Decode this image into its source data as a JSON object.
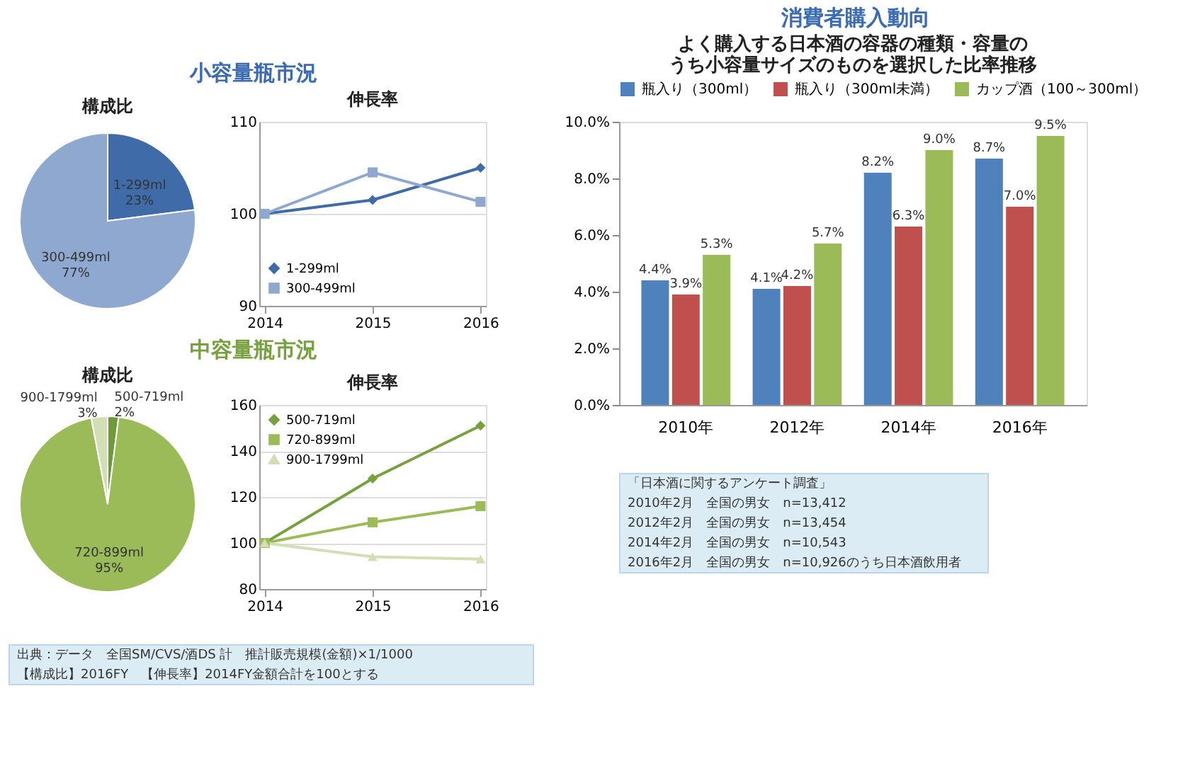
{
  "chart_data": [
    {
      "type": "pie",
      "title": "構成比",
      "annotations": [
        "小容量瓶市況"
      ],
      "categories": [
        "1-299ml",
        "300-499ml"
      ],
      "values": [
        23,
        77
      ],
      "value_labels": [
        "23%",
        "77%"
      ],
      "colors": [
        "#3f6ca8",
        "#8fa8d0"
      ]
    },
    {
      "type": "line",
      "title": "伸長率",
      "categories": [
        "2014",
        "2015",
        "2016"
      ],
      "ylim": [
        90,
        110
      ],
      "yticks": [
        90,
        100,
        110
      ],
      "grid": "y",
      "legend": "bottom left",
      "line_style": "solid",
      "series": [
        {
          "name": "1-299ml",
          "color": "#3f6ca8",
          "marker": "diamond",
          "values": [
            100,
            101.5,
            105
          ]
        },
        {
          "name": "300-499ml",
          "color": "#8fa8d0",
          "marker": "square",
          "values": [
            100,
            104.5,
            101.3
          ]
        }
      ]
    },
    {
      "type": "pie",
      "title": "構成比",
      "annotations": [
        "中容量瓶市況"
      ],
      "categories": [
        "500-719ml",
        "720-899ml",
        "900-1799ml"
      ],
      "values": [
        2,
        95,
        3
      ],
      "value_labels": [
        "2%",
        "95%",
        "3%"
      ],
      "colors": [
        "#6f9a3a",
        "#9bbb59",
        "#d2dfb4"
      ]
    },
    {
      "type": "line",
      "title": "伸長率",
      "categories": [
        "2014",
        "2015",
        "2016"
      ],
      "ylim": [
        80,
        160
      ],
      "yticks": [
        80,
        100,
        120,
        140,
        160
      ],
      "grid": "y",
      "legend": "top left",
      "line_style": "solid",
      "annotations": [
        "出典：データ　全国SM/CVS/酒DS 計　推計販売規模(金額)×1/1000",
        "【構成比】2016FY　【伸長率】2014FY金額合計を100とする"
      ],
      "series": [
        {
          "name": "500-719ml",
          "color": "#77a13f",
          "marker": "diamond",
          "values": [
            100,
            128,
            151
          ]
        },
        {
          "name": "720-899ml",
          "color": "#9bbb59",
          "marker": "square",
          "values": [
            100,
            109,
            116
          ]
        },
        {
          "name": "900-1799ml",
          "color": "#d2dfb4",
          "marker": "triangle",
          "values": [
            100,
            94,
            93
          ]
        }
      ]
    },
    {
      "type": "bar",
      "title": "よく購入する日本酒の容器の種類・容量のうち小容量サイズのものを選択した比率推移",
      "annotations": [
        "消費者購入動向",
        "「日本酒に関するアンケート調査」",
        "2010年2月　全国の男女　n=13,412",
        "2012年2月　全国の男女　n=13,454",
        "2014年2月　全国の男女　n=10,543",
        "2016年2月　全国の男女　n=10,926のうち日本酒飲用者"
      ],
      "categories": [
        "2010年",
        "2012年",
        "2014年",
        "2016年"
      ],
      "ylim": [
        0,
        10
      ],
      "legend": "top",
      "grid": false,
      "yticks": [
        {
          "value": 0,
          "label": "0.0%"
        },
        {
          "value": 2,
          "label": "2.0%"
        },
        {
          "value": 4,
          "label": "4.0%"
        },
        {
          "value": 6,
          "label": "6.0%"
        },
        {
          "value": 8,
          "label": "8.0%"
        },
        {
          "value": 10,
          "label": "10.0%"
        }
      ],
      "series": [
        {
          "name": "瓶入り（300ml）",
          "color": "#4f81bd",
          "values": [
            4.4,
            4.1,
            8.2,
            8.7
          ],
          "value_labels": [
            "4.4%",
            "4.1%",
            "8.2%",
            "8.7%"
          ]
        },
        {
          "name": "瓶入り（300ml未満）",
          "color": "#c0504d",
          "values": [
            3.9,
            4.2,
            6.3,
            7.0
          ],
          "value_labels": [
            "3.9%",
            "4.2%",
            "6.3%",
            "7.0%"
          ]
        },
        {
          "name": "カップ酒（100～300ml）",
          "color": "#9bbb59",
          "values": [
            5.3,
            5.7,
            9.0,
            9.5
          ],
          "value_labels": [
            "5.3%",
            "5.7%",
            "9.0%",
            "9.5%"
          ]
        }
      ]
    }
  ]
}
